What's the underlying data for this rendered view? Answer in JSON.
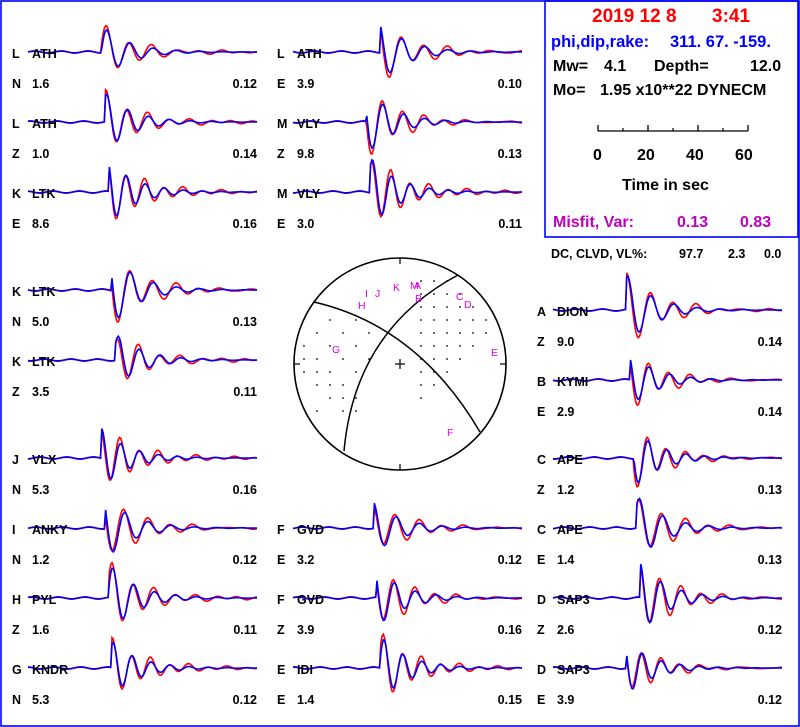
{
  "colors": {
    "observed": "#ff0000",
    "synthetic": "#0000ff",
    "header_red": "#ff0000",
    "header_blue": "#0000ff",
    "misfit": "#c000c0",
    "frame": "#0000ff",
    "station_pick": "#e000e0"
  },
  "info": {
    "date": "2019 12  8",
    "time": "3:41",
    "pdr_label": "phi,dip,rake:",
    "pdr_values": "311. 67. -159.",
    "mw_label": "Mw=",
    "mw_value": "4.1",
    "depth_label": "Depth=",
    "depth_value": "12.0",
    "mo_label": "Mo=",
    "mo_value": "1.95 x10**22 DYNECM",
    "time_ticks": [
      "0",
      "20",
      "40",
      "60"
    ],
    "time_axis_label": "Time  in sec",
    "misfit_label": "Misfit, Var:",
    "misfit_value": "0.13",
    "var_value": "0.83",
    "dc_label": "DC, CLVD, VL%:",
    "dc_value": "97.7",
    "clvd_value": "2.3",
    "vl_value": "0.0"
  },
  "traces": [
    {
      "group": "L",
      "station": "ATH",
      "component": "N",
      "weight": "1.6",
      "max_amp": "0.12"
    },
    {
      "group": "L",
      "station": "ATH",
      "component": "Z",
      "weight": "1.0",
      "max_amp": "0.14"
    },
    {
      "group": "K",
      "station": "LTK",
      "component": "E",
      "weight": "8.6",
      "max_amp": "0.16"
    },
    {
      "group": "K",
      "station": "LTK",
      "component": "N",
      "weight": "5.0",
      "max_amp": "0.13"
    },
    {
      "group": "K",
      "station": "LTK",
      "component": "Z",
      "weight": "3.5",
      "max_amp": "0.11"
    },
    {
      "group": "J",
      "station": "VLX",
      "component": "N",
      "weight": "5.3",
      "max_amp": "0.16"
    },
    {
      "group": "I",
      "station": "ANKY",
      "component": "N",
      "weight": "1.2",
      "max_amp": "0.12"
    },
    {
      "group": "H",
      "station": "PYL",
      "component": "Z",
      "weight": "1.6",
      "max_amp": "0.11"
    },
    {
      "group": "G",
      "station": "KNDR",
      "component": "N",
      "weight": "5.3",
      "max_amp": "0.12"
    },
    {
      "group": "L",
      "station": "ATH",
      "component": "E",
      "weight": "3.9",
      "max_amp": "0.10"
    },
    {
      "group": "M",
      "station": "VLY",
      "component": "Z",
      "weight": "9.8",
      "max_amp": "0.13"
    },
    {
      "group": "M",
      "station": "VLY",
      "component": "E",
      "weight": "3.0",
      "max_amp": "0.11"
    },
    {
      "group": "F",
      "station": "GVD",
      "component": "E",
      "weight": "3.2",
      "max_amp": "0.12"
    },
    {
      "group": "F",
      "station": "GVD",
      "component": "Z",
      "weight": "3.9",
      "max_amp": "0.16"
    },
    {
      "group": "E",
      "station": "IDI",
      "component": "E",
      "weight": "1.4",
      "max_amp": "0.15"
    },
    {
      "group": "A",
      "station": "DION",
      "component": "Z",
      "weight": "9.0",
      "max_amp": "0.14"
    },
    {
      "group": "B",
      "station": "KYMI",
      "component": "E",
      "weight": "2.9",
      "max_amp": "0.14"
    },
    {
      "group": "C",
      "station": "APE",
      "component": "Z",
      "weight": "1.2",
      "max_amp": "0.13"
    },
    {
      "group": "C",
      "station": "APE",
      "component": "E",
      "weight": "1.4",
      "max_amp": "0.13"
    },
    {
      "group": "D",
      "station": "SAP3",
      "component": "Z",
      "weight": "2.6",
      "max_amp": "0.12"
    },
    {
      "group": "D",
      "station": "SAP3",
      "component": "E",
      "weight": "3.9",
      "max_amp": "0.12"
    }
  ],
  "beachball": {
    "station_letters": [
      "I",
      "J",
      "K",
      "M",
      "A",
      "H",
      "B",
      "C",
      "D",
      "G",
      "E",
      "F"
    ]
  }
}
